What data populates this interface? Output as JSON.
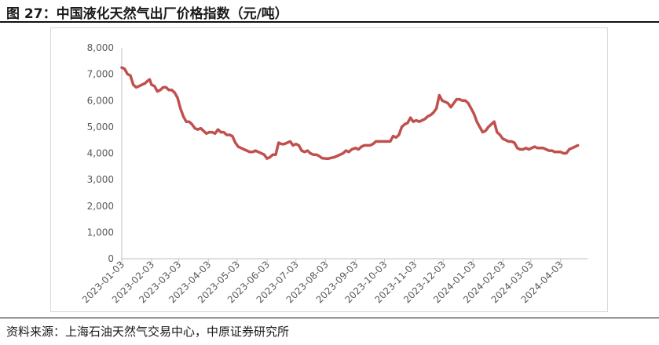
{
  "header": {
    "title": "图 27：中国液化天然气出厂价格指数（元/吨）"
  },
  "footer": {
    "source": "资料来源：上海石油天然气交易中心，中原证券研究所"
  },
  "chart_data": {
    "type": "line",
    "title": "图 27：中国液化天然气出厂价格指数（元/吨）",
    "xlabel": "",
    "ylabel": "",
    "ylim": [
      0,
      8000
    ],
    "yticks": [
      0,
      1000,
      2000,
      3000,
      4000,
      5000,
      6000,
      7000,
      8000
    ],
    "ytick_labels": [
      "0",
      "1,000",
      "2,000",
      "3,000",
      "4,000",
      "5,000",
      "6,000",
      "7,000",
      "8,000"
    ],
    "xlim": [
      "2023-01-03",
      "2024-05-01"
    ],
    "xtick_labels": [
      "2023-01-03",
      "2023-02-03",
      "2023-03-03",
      "2023-04-03",
      "2023-05-03",
      "2023-06-03",
      "2023-07-03",
      "2023-08-03",
      "2023-09-03",
      "2023-10-03",
      "2023-11-03",
      "2023-12-03",
      "2024-01-03",
      "2024-02-03",
      "2024-03-03",
      "2024-04-03"
    ],
    "grid": false,
    "legend": "none",
    "series": [
      {
        "color": "#c0504d",
        "points": [
          [
            "2023-01-03",
            7250
          ],
          [
            "2023-01-06",
            7200
          ],
          [
            "2023-01-09",
            7000
          ],
          [
            "2023-01-12",
            6950
          ],
          [
            "2023-01-15",
            6600
          ],
          [
            "2023-01-18",
            6500
          ],
          [
            "2023-01-21",
            6550
          ],
          [
            "2023-01-24",
            6600
          ],
          [
            "2023-01-27",
            6650
          ],
          [
            "2023-01-30",
            6750
          ],
          [
            "2023-02-01",
            6800
          ],
          [
            "2023-02-03",
            6600
          ],
          [
            "2023-02-06",
            6550
          ],
          [
            "2023-02-09",
            6350
          ],
          [
            "2023-02-12",
            6400
          ],
          [
            "2023-02-15",
            6500
          ],
          [
            "2023-02-18",
            6500
          ],
          [
            "2023-02-21",
            6400
          ],
          [
            "2023-02-24",
            6400
          ],
          [
            "2023-02-27",
            6300
          ],
          [
            "2023-03-02",
            6100
          ],
          [
            "2023-03-05",
            5700
          ],
          [
            "2023-03-08",
            5400
          ],
          [
            "2023-03-11",
            5200
          ],
          [
            "2023-03-14",
            5200
          ],
          [
            "2023-03-17",
            5100
          ],
          [
            "2023-03-20",
            4950
          ],
          [
            "2023-03-23",
            4900
          ],
          [
            "2023-03-26",
            4950
          ],
          [
            "2023-03-29",
            4850
          ],
          [
            "2023-04-01",
            4750
          ],
          [
            "2023-04-04",
            4800
          ],
          [
            "2023-04-07",
            4800
          ],
          [
            "2023-04-10",
            4750
          ],
          [
            "2023-04-13",
            4900
          ],
          [
            "2023-04-16",
            4800
          ],
          [
            "2023-04-19",
            4800
          ],
          [
            "2023-04-22",
            4700
          ],
          [
            "2023-04-25",
            4700
          ],
          [
            "2023-04-28",
            4650
          ],
          [
            "2023-05-01",
            4400
          ],
          [
            "2023-05-04",
            4250
          ],
          [
            "2023-05-07",
            4200
          ],
          [
            "2023-05-10",
            4150
          ],
          [
            "2023-05-13",
            4100
          ],
          [
            "2023-05-16",
            4050
          ],
          [
            "2023-05-19",
            4050
          ],
          [
            "2023-05-22",
            4100
          ],
          [
            "2023-05-25",
            4050
          ],
          [
            "2023-05-28",
            4000
          ],
          [
            "2023-05-31",
            3950
          ],
          [
            "2023-06-03",
            3800
          ],
          [
            "2023-06-06",
            3850
          ],
          [
            "2023-06-09",
            3950
          ],
          [
            "2023-06-12",
            3950
          ],
          [
            "2023-06-15",
            4400
          ],
          [
            "2023-06-18",
            4350
          ],
          [
            "2023-06-21",
            4350
          ],
          [
            "2023-06-24",
            4400
          ],
          [
            "2023-06-27",
            4450
          ],
          [
            "2023-06-30",
            4300
          ],
          [
            "2023-07-03",
            4350
          ],
          [
            "2023-07-06",
            4300
          ],
          [
            "2023-07-09",
            4100
          ],
          [
            "2023-07-12",
            4050
          ],
          [
            "2023-07-15",
            4100
          ],
          [
            "2023-07-18",
            4000
          ],
          [
            "2023-07-21",
            3950
          ],
          [
            "2023-07-24",
            3950
          ],
          [
            "2023-07-27",
            3900
          ],
          [
            "2023-07-30",
            3820
          ],
          [
            "2023-08-03",
            3800
          ],
          [
            "2023-08-06",
            3800
          ],
          [
            "2023-08-09",
            3830
          ],
          [
            "2023-08-12",
            3850
          ],
          [
            "2023-08-15",
            3900
          ],
          [
            "2023-08-18",
            3950
          ],
          [
            "2023-08-21",
            4000
          ],
          [
            "2023-08-24",
            4100
          ],
          [
            "2023-08-27",
            4050
          ],
          [
            "2023-08-30",
            4150
          ],
          [
            "2023-09-03",
            4200
          ],
          [
            "2023-09-06",
            4150
          ],
          [
            "2023-09-09",
            4250
          ],
          [
            "2023-09-12",
            4300
          ],
          [
            "2023-09-15",
            4300
          ],
          [
            "2023-09-18",
            4300
          ],
          [
            "2023-09-21",
            4350
          ],
          [
            "2023-09-24",
            4450
          ],
          [
            "2023-09-27",
            4450
          ],
          [
            "2023-09-30",
            4450
          ],
          [
            "2023-10-03",
            4450
          ],
          [
            "2023-10-06",
            4450
          ],
          [
            "2023-10-09",
            4450
          ],
          [
            "2023-10-12",
            4650
          ],
          [
            "2023-10-15",
            4600
          ],
          [
            "2023-10-18",
            4700
          ],
          [
            "2023-10-21",
            5000
          ],
          [
            "2023-10-24",
            5100
          ],
          [
            "2023-10-27",
            5150
          ],
          [
            "2023-10-30",
            5350
          ],
          [
            "2023-11-02",
            5200
          ],
          [
            "2023-11-05",
            5250
          ],
          [
            "2023-11-08",
            5200
          ],
          [
            "2023-11-11",
            5250
          ],
          [
            "2023-11-14",
            5300
          ],
          [
            "2023-11-17",
            5400
          ],
          [
            "2023-11-20",
            5450
          ],
          [
            "2023-11-23",
            5550
          ],
          [
            "2023-11-26",
            5700
          ],
          [
            "2023-11-29",
            6200
          ],
          [
            "2023-12-02",
            6000
          ],
          [
            "2023-12-05",
            5950
          ],
          [
            "2023-12-08",
            5900
          ],
          [
            "2023-12-11",
            5750
          ],
          [
            "2023-12-14",
            5900
          ],
          [
            "2023-12-17",
            6050
          ],
          [
            "2023-12-20",
            6050
          ],
          [
            "2023-12-23",
            6000
          ],
          [
            "2023-12-26",
            6000
          ],
          [
            "2023-12-29",
            5900
          ],
          [
            "2024-01-01",
            5700
          ],
          [
            "2024-01-04",
            5500
          ],
          [
            "2024-01-07",
            5200
          ],
          [
            "2024-01-10",
            5000
          ],
          [
            "2024-01-13",
            4800
          ],
          [
            "2024-01-16",
            4850
          ],
          [
            "2024-01-19",
            5000
          ],
          [
            "2024-01-22",
            5100
          ],
          [
            "2024-01-25",
            5200
          ],
          [
            "2024-01-28",
            4800
          ],
          [
            "2024-01-31",
            4700
          ],
          [
            "2024-02-03",
            4550
          ],
          [
            "2024-02-06",
            4500
          ],
          [
            "2024-02-09",
            4450
          ],
          [
            "2024-02-12",
            4450
          ],
          [
            "2024-02-15",
            4400
          ],
          [
            "2024-02-18",
            4200
          ],
          [
            "2024-02-21",
            4150
          ],
          [
            "2024-02-24",
            4150
          ],
          [
            "2024-02-27",
            4200
          ],
          [
            "2024-03-01",
            4150
          ],
          [
            "2024-03-04",
            4200
          ],
          [
            "2024-03-07",
            4250
          ],
          [
            "2024-03-10",
            4200
          ],
          [
            "2024-03-13",
            4200
          ],
          [
            "2024-03-16",
            4200
          ],
          [
            "2024-03-19",
            4150
          ],
          [
            "2024-03-22",
            4100
          ],
          [
            "2024-03-25",
            4100
          ],
          [
            "2024-03-28",
            4050
          ],
          [
            "2024-03-31",
            4050
          ],
          [
            "2024-04-03",
            4050
          ],
          [
            "2024-04-06",
            4000
          ],
          [
            "2024-04-09",
            4000
          ],
          [
            "2024-04-12",
            4150
          ],
          [
            "2024-04-15",
            4200
          ],
          [
            "2024-04-18",
            4250
          ],
          [
            "2024-04-21",
            4300
          ]
        ]
      }
    ]
  }
}
